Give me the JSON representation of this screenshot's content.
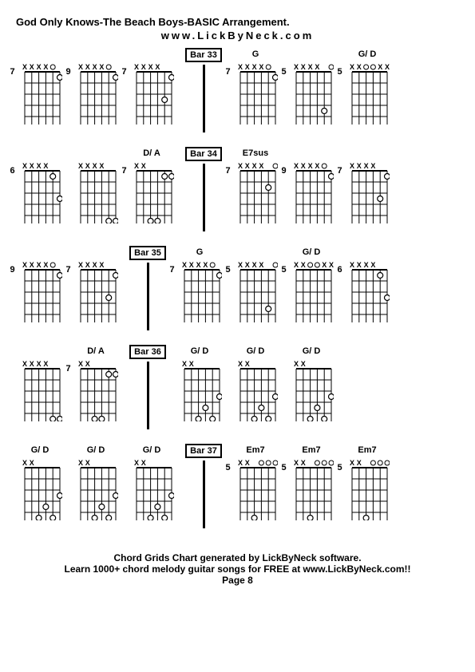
{
  "title": "God Only Knows-The Beach Boys-BASIC Arrangement.",
  "subtitle": "www.LickByNeck.com",
  "footer": {
    "line1": "Chord Grids Chart generated by LickByNeck software.",
    "line2": "Learn 1000+ chord melody guitar songs for FREE at www.LickByNeck.com!!",
    "page": "Page 8"
  },
  "colors": {
    "line": "#000000",
    "bg": "#ffffff"
  },
  "strings": 6,
  "frets": 5,
  "muted_marker": "X",
  "open_marker": true,
  "rows": [
    {
      "left": [
        {
          "label": "",
          "fret": 7,
          "muted": [
            3,
            4,
            5,
            6
          ],
          "dots": [
            {
              "s": 1,
              "f": 1
            }
          ],
          "opens": [
            2
          ]
        },
        {
          "label": "",
          "fret": 9,
          "muted": [
            3,
            4,
            5,
            6
          ],
          "dots": [
            {
              "s": 1,
              "f": 1
            }
          ],
          "opens": [
            2
          ]
        },
        {
          "label": "",
          "fret": 7,
          "muted": [
            3,
            4,
            5,
            6
          ],
          "dots": [
            {
              "s": 1,
              "f": 1
            },
            {
              "s": 2,
              "f": 3
            }
          ],
          "opens": []
        }
      ],
      "bar": "Bar 33",
      "right": [
        {
          "label": "G",
          "fret": 7,
          "muted": [
            3,
            4,
            5,
            6
          ],
          "dots": [
            {
              "s": 1,
              "f": 1
            }
          ],
          "opens": [
            2
          ]
        },
        {
          "label": "",
          "fret": 5,
          "muted": [
            3,
            4,
            5,
            6
          ],
          "dots": [
            {
              "s": 2,
              "f": 4
            }
          ],
          "opens": [
            1
          ]
        },
        {
          "label": "G/ D",
          "fret": 5,
          "muted": [
            1,
            2,
            5,
            6
          ],
          "dots": [],
          "opens": [
            3,
            4
          ]
        }
      ]
    },
    {
      "left": [
        {
          "label": "",
          "fret": 6,
          "muted": [
            3,
            4,
            5,
            6
          ],
          "dots": [
            {
              "s": 1,
              "f": 3
            },
            {
              "s": 2,
              "f": 1
            }
          ],
          "opens": []
        },
        {
          "label": "",
          "fret": null,
          "muted": [
            3,
            4,
            5,
            6
          ],
          "dots": [
            {
              "s": 1,
              "f": 5
            },
            {
              "s": 2,
              "f": 5
            }
          ],
          "opens": []
        },
        {
          "label": "D/ A",
          "fret": 7,
          "muted": [
            5,
            6
          ],
          "dots": [
            {
              "s": 1,
              "f": 1
            },
            {
              "s": 2,
              "f": 1
            },
            {
              "s": 3,
              "f": 5
            },
            {
              "s": 4,
              "f": 5
            }
          ],
          "opens": []
        }
      ],
      "bar": "Bar 34",
      "right": [
        {
          "label": "E7sus",
          "fret": 7,
          "muted": [
            3,
            4,
            5,
            6
          ],
          "dots": [
            {
              "s": 2,
              "f": 2
            }
          ],
          "opens": [
            1
          ]
        },
        {
          "label": "",
          "fret": 9,
          "muted": [
            3,
            4,
            5,
            6
          ],
          "dots": [
            {
              "s": 1,
              "f": 1
            }
          ],
          "opens": [
            2
          ]
        },
        {
          "label": "",
          "fret": 7,
          "muted": [
            3,
            4,
            5,
            6
          ],
          "dots": [
            {
              "s": 1,
              "f": 1
            },
            {
              "s": 2,
              "f": 3
            }
          ],
          "opens": []
        }
      ]
    },
    {
      "left": [
        {
          "label": "",
          "fret": 9,
          "muted": [
            3,
            4,
            5,
            6
          ],
          "dots": [
            {
              "s": 1,
              "f": 1
            }
          ],
          "opens": [
            2
          ]
        },
        {
          "label": "",
          "fret": 7,
          "muted": [
            3,
            4,
            5,
            6
          ],
          "dots": [
            {
              "s": 1,
              "f": 1
            },
            {
              "s": 2,
              "f": 3
            }
          ],
          "opens": []
        }
      ],
      "bar": "Bar 35",
      "right": [
        {
          "label": "G",
          "fret": 7,
          "muted": [
            3,
            4,
            5,
            6
          ],
          "dots": [
            {
              "s": 1,
              "f": 1
            }
          ],
          "opens": [
            2
          ]
        },
        {
          "label": "",
          "fret": 5,
          "muted": [
            3,
            4,
            5,
            6
          ],
          "dots": [
            {
              "s": 2,
              "f": 4
            }
          ],
          "opens": [
            1
          ]
        },
        {
          "label": "G/ D",
          "fret": 5,
          "muted": [
            1,
            2,
            5,
            6
          ],
          "dots": [],
          "opens": [
            3,
            4
          ]
        },
        {
          "label": "",
          "fret": 6,
          "muted": [
            3,
            4,
            5,
            6
          ],
          "dots": [
            {
              "s": 1,
              "f": 3
            },
            {
              "s": 2,
              "f": 1
            }
          ],
          "opens": []
        }
      ]
    },
    {
      "left": [
        {
          "label": "",
          "fret": null,
          "muted": [
            3,
            4,
            5,
            6
          ],
          "dots": [
            {
              "s": 1,
              "f": 5
            },
            {
              "s": 2,
              "f": 5
            }
          ],
          "opens": []
        },
        {
          "label": "D/ A",
          "fret": 7,
          "muted": [
            5,
            6
          ],
          "dots": [
            {
              "s": 1,
              "f": 1
            },
            {
              "s": 2,
              "f": 1
            },
            {
              "s": 3,
              "f": 5
            },
            {
              "s": 4,
              "f": 5
            }
          ],
          "opens": []
        }
      ],
      "bar": "Bar 36",
      "right": [
        {
          "label": "G/ D",
          "fret": null,
          "muted": [
            5,
            6
          ],
          "dots": [
            {
              "s": 1,
              "f": 3
            },
            {
              "s": 3,
              "f": 4
            },
            {
              "s": 2,
              "f": 5
            },
            {
              "s": 4,
              "f": 5
            }
          ],
          "opens": []
        },
        {
          "label": "G/ D",
          "fret": null,
          "muted": [
            5,
            6
          ],
          "dots": [
            {
              "s": 1,
              "f": 3
            },
            {
              "s": 3,
              "f": 4
            },
            {
              "s": 2,
              "f": 5
            },
            {
              "s": 4,
              "f": 5
            }
          ],
          "opens": []
        },
        {
          "label": "G/ D",
          "fret": null,
          "muted": [
            5,
            6
          ],
          "dots": [
            {
              "s": 1,
              "f": 3
            },
            {
              "s": 3,
              "f": 4
            },
            {
              "s": 2,
              "f": 5
            },
            {
              "s": 4,
              "f": 5
            }
          ],
          "opens": []
        }
      ]
    },
    {
      "left": [
        {
          "label": "G/ D",
          "fret": null,
          "muted": [
            5,
            6
          ],
          "dots": [
            {
              "s": 1,
              "f": 3
            },
            {
              "s": 3,
              "f": 4
            },
            {
              "s": 2,
              "f": 5
            },
            {
              "s": 4,
              "f": 5
            }
          ],
          "opens": []
        },
        {
          "label": "G/ D",
          "fret": null,
          "muted": [
            5,
            6
          ],
          "dots": [
            {
              "s": 1,
              "f": 3
            },
            {
              "s": 3,
              "f": 4
            },
            {
              "s": 2,
              "f": 5
            },
            {
              "s": 4,
              "f": 5
            }
          ],
          "opens": []
        },
        {
          "label": "G/ D",
          "fret": null,
          "muted": [
            5,
            6
          ],
          "dots": [
            {
              "s": 1,
              "f": 3
            },
            {
              "s": 3,
              "f": 4
            },
            {
              "s": 2,
              "f": 5
            },
            {
              "s": 4,
              "f": 5
            }
          ],
          "opens": []
        }
      ],
      "bar": "Bar 37",
      "right": [
        {
          "label": "Em7",
          "fret": 5,
          "muted": [
            5,
            6
          ],
          "dots": [
            {
              "s": 4,
              "f": 5
            }
          ],
          "opens": [
            1,
            2,
            3
          ]
        },
        {
          "label": "Em7",
          "fret": 5,
          "muted": [
            5,
            6
          ],
          "dots": [
            {
              "s": 4,
              "f": 5
            }
          ],
          "opens": [
            1,
            2,
            3
          ]
        },
        {
          "label": "Em7",
          "fret": 5,
          "muted": [
            5,
            6
          ],
          "dots": [
            {
              "s": 4,
              "f": 5
            }
          ],
          "opens": [
            1,
            2,
            3
          ]
        }
      ]
    }
  ]
}
